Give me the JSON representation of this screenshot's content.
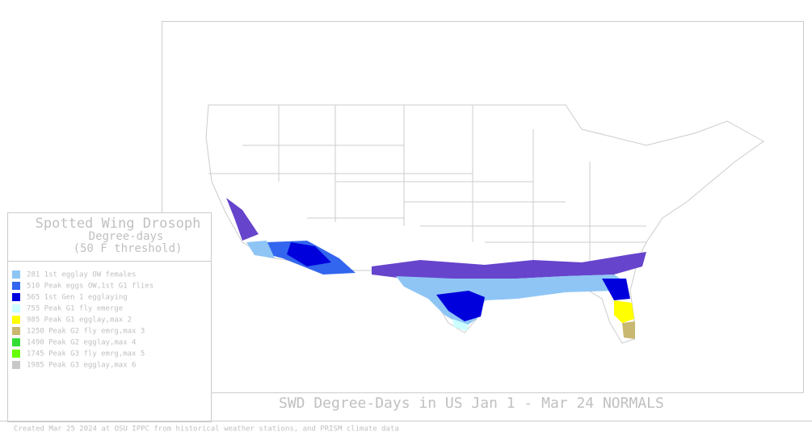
{
  "legend": {
    "title": "Spotted Wing Drosoph",
    "subtitle": "Degree-days",
    "threshold": "(50 F threshold)",
    "items": [
      {
        "label": "281 1st egglay OW females",
        "color": "#8ec5f5"
      },
      {
        "label": "510 Peak eggs OW,1st G1 flies",
        "color": "#3366ee"
      },
      {
        "label": "565 1st Gen 1 egglaying",
        "color": "#0000dd"
      },
      {
        "label": "755 Peak G1 fly emerge",
        "color": "#ccffff"
      },
      {
        "label": "985 Peak G1 egglay,max 2",
        "color": "#ffff00"
      },
      {
        "label": "1250 Peak G2 fly emrg,max 3",
        "color": "#c8b870"
      },
      {
        "label": "1490 Peak G2 egglay,max 4",
        "color": "#33dd33"
      },
      {
        "label": "1745 Peak G3 fly emrg,max 5",
        "color": "#66ff00"
      },
      {
        "label": "1985 Peak G3 egglay,max 6",
        "color": "#c8c8c8"
      }
    ]
  },
  "map_title": "SWD Degree-Days in US  Jan 1 - Mar 24 NORMALS",
  "footer": "Created Mar 25 2024 at OSU IPPC from  historical weather stations, and PRISM climate data"
}
